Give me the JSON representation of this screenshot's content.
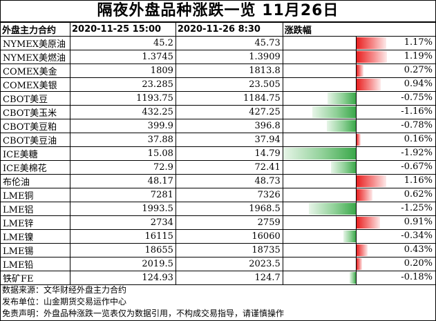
{
  "title": "隔夜外盘品种涨跌一览  11月26日",
  "headers": {
    "name": "外盘主力合约",
    "date1": "2020-11-25 15:00",
    "date2": "2020-11-26 8:30",
    "change": "涨跌幅"
  },
  "rows": [
    {
      "name": "NYMEX美原油",
      "v1": "45.2",
      "v2": "45.73",
      "pct": "1.17%",
      "change": 1.17
    },
    {
      "name": "NYMEX美燃油",
      "v1": "1.3745",
      "v2": "1.3909",
      "pct": "1.19%",
      "change": 1.19
    },
    {
      "name": "COMEX美金",
      "v1": "1809",
      "v2": "1813.8",
      "pct": "0.27%",
      "change": 0.27
    },
    {
      "name": "COMEX美银",
      "v1": "23.285",
      "v2": "23.505",
      "pct": "0.94%",
      "change": 0.94
    },
    {
      "name": "CBOT美豆",
      "v1": "1193.75",
      "v2": "1184.75",
      "pct": "-0.75%",
      "change": -0.75
    },
    {
      "name": "CBOT美玉米",
      "v1": "432.25",
      "v2": "427.25",
      "pct": "-1.16%",
      "change": -1.16
    },
    {
      "name": "CBOT美豆粕",
      "v1": "399.9",
      "v2": "396.8",
      "pct": "-0.78%",
      "change": -0.78
    },
    {
      "name": "CBOT美豆油",
      "v1": "37.88",
      "v2": "37.94",
      "pct": "0.16%",
      "change": 0.16
    },
    {
      "name": "ICE美糖",
      "v1": "15.08",
      "v2": "14.79",
      "pct": "-1.92%",
      "change": -1.92
    },
    {
      "name": "ICE美棉花",
      "v1": "72.9",
      "v2": "72.41",
      "pct": "-0.67%",
      "change": -0.67
    },
    {
      "name": "布伦油",
      "v1": "48.17",
      "v2": "48.73",
      "pct": "1.16%",
      "change": 1.16
    },
    {
      "name": "LME铜",
      "v1": "7281",
      "v2": "7326",
      "pct": "0.62%",
      "change": 0.62
    },
    {
      "name": "LME铝",
      "v1": "1993.5",
      "v2": "1968.5",
      "pct": "-1.25%",
      "change": -1.25
    },
    {
      "name": "LME锌",
      "v1": "2734",
      "v2": "2759",
      "pct": "0.91%",
      "change": 0.91
    },
    {
      "name": "LME镍",
      "v1": "16115",
      "v2": "16060",
      "pct": "-0.34%",
      "change": -0.34
    },
    {
      "name": "LME锡",
      "v1": "18655",
      "v2": "18735",
      "pct": "0.43%",
      "change": 0.43
    },
    {
      "name": "LME铅",
      "v1": "2019.5",
      "v2": "2023.5",
      "pct": "0.20%",
      "change": 0.2
    },
    {
      "name": "铁矿FE",
      "v1": "124.93",
      "v2": "124.7",
      "pct": "-0.18%",
      "change": -0.18
    }
  ],
  "max_abs_change": 1.92,
  "colors": {
    "positive": "#e82020",
    "negative": "#3aa84a"
  },
  "footer": [
    "数据来源：文华财经外盘主力合约",
    "发布单位：山金期货交易运作中心",
    "免责声明：外盘品种涨跌一览表仅为数据引用，不构成交易指导，请谨慎操作"
  ]
}
